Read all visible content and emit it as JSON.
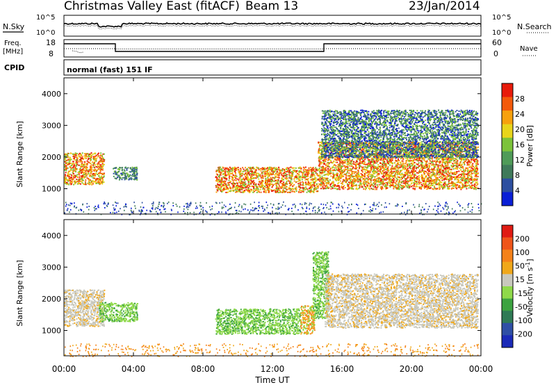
{
  "header": {
    "title": "Christmas Valley East (fitACF)",
    "beam": "Beam 13",
    "date": "23/Jan/2014"
  },
  "top_panels": {
    "nsky_label": "N.Sky",
    "nsearch_label": "N.Search",
    "noise_ticks": [
      "10^5",
      "10^0"
    ],
    "freq_label_1": "Freq.",
    "freq_label_2": "[MHz]",
    "freq_ticks": [
      "18",
      "8"
    ],
    "nave_label": "Nave",
    "nave_ticks": [
      "60",
      "0"
    ],
    "cpid_label": "CPID",
    "cpid_value": "normal (fast) 151 IF"
  },
  "colors": {
    "power": [
      "#0a1fd6",
      "#2d4fa0",
      "#3f7a5a",
      "#4f9b58",
      "#7cc33a",
      "#e8d51b",
      "#f7a10d",
      "#f45a0b",
      "#e81b0b"
    ],
    "velocity": [
      "#1b2ab8",
      "#2f4fa5",
      "#2f7a55",
      "#3ca340",
      "#8fd94a",
      "#c8c8bd",
      "#f0a81a",
      "#f5821a",
      "#f0551a",
      "#e01b13"
    ]
  },
  "chart_data": [
    {
      "type": "heatmap",
      "title": "Power",
      "ylabel": "Slant Range [km]",
      "colorbar_label": "Power [dB]",
      "colorbar_ticks": [
        "28",
        "24",
        "20",
        "16",
        "12",
        "8",
        "4"
      ],
      "y_ticks": [
        "4000",
        "3000",
        "2000",
        "1000"
      ],
      "ylim": [
        200,
        4500
      ],
      "xlim": [
        0,
        24
      ],
      "scatter_bands": [
        {
          "x_range": [
            0.0,
            2.3
          ],
          "y_range": [
            1150,
            2150
          ],
          "level": "high"
        },
        {
          "x_range": [
            2.8,
            4.2
          ],
          "y_range": [
            1300,
            1700
          ],
          "level": "mid"
        },
        {
          "x_range": [
            8.7,
            14.6
          ],
          "y_range": [
            900,
            1700
          ],
          "level": "high"
        },
        {
          "x_range": [
            14.6,
            23.8
          ],
          "y_range": [
            1000,
            2500
          ],
          "level": "high"
        },
        {
          "x_range": [
            14.8,
            23.8
          ],
          "y_range": [
            2000,
            3500
          ],
          "level": "low"
        }
      ]
    },
    {
      "type": "heatmap",
      "title": "Velocity",
      "ylabel": "Slant Range [km]",
      "colorbar_label": "Velocity [m s^-1]",
      "colorbar_ticks": [
        "200",
        "100",
        "50",
        "15",
        "-15",
        "-50",
        "-100",
        "-200"
      ],
      "y_ticks": [
        "4000",
        "3000",
        "2000",
        "1000"
      ],
      "ylim": [
        200,
        4500
      ],
      "xlim": [
        0,
        24
      ],
      "scatter_bands": [
        {
          "x_range": [
            0.0,
            2.3
          ],
          "y_range": [
            1150,
            2300
          ],
          "level": "gray"
        },
        {
          "x_range": [
            2.0,
            4.2
          ],
          "y_range": [
            1300,
            1900
          ],
          "level": "green"
        },
        {
          "x_range": [
            8.7,
            13.6
          ],
          "y_range": [
            900,
            1700
          ],
          "level": "green"
        },
        {
          "x_range": [
            13.6,
            14.4
          ],
          "y_range": [
            900,
            1800
          ],
          "level": "orange"
        },
        {
          "x_range": [
            14.3,
            15.2
          ],
          "y_range": [
            1400,
            3500
          ],
          "level": "green"
        },
        {
          "x_range": [
            15.0,
            23.8
          ],
          "y_range": [
            1100,
            2800
          ],
          "level": "gray"
        }
      ]
    }
  ],
  "x_axis": {
    "ticks": [
      "00:00",
      "04:00",
      "08:00",
      "12:00",
      "16:00",
      "20:00",
      "00:00"
    ],
    "label": "Time UT"
  }
}
